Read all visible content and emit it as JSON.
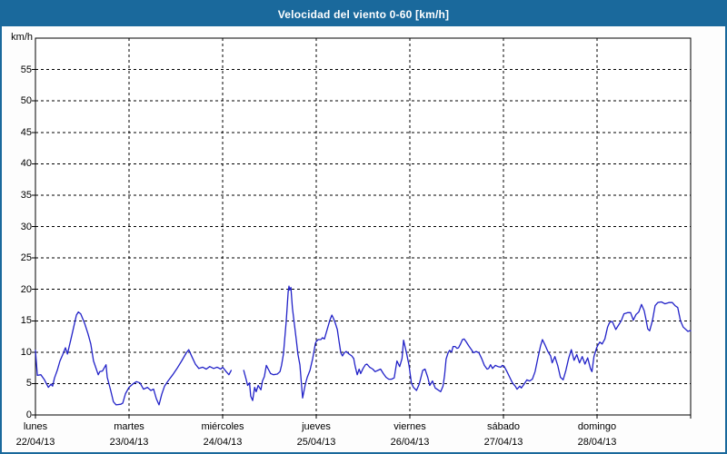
{
  "window": {
    "title": "Velocidad del viento 0-60 [km/h]"
  },
  "colors": {
    "header_bg": "#1a699c",
    "frame_border": "#1a699c",
    "page_bg": "#fdfdfd",
    "plot_bg": "#ffffff",
    "title_text": "#ffffff",
    "axis_text": "#000000",
    "grid": "#000000",
    "line": "#2222c8"
  },
  "chart_data": {
    "type": "line",
    "title": "Velocidad del viento 0-60 [km/h]",
    "ylabel": "km/h",
    "xlabel": "",
    "ylim": [
      0,
      60
    ],
    "y_ticks": [
      0,
      5,
      10,
      15,
      20,
      25,
      30,
      35,
      40,
      45,
      50,
      55
    ],
    "grid": "dashed",
    "legend": "none",
    "x_axis": {
      "range_hours": [
        0,
        168
      ],
      "hours_per_day": 24,
      "days": [
        {
          "name": "lunes",
          "date": "22/04/13"
        },
        {
          "name": "martes",
          "date": "23/04/13"
        },
        {
          "name": "miércoles",
          "date": "24/04/13"
        },
        {
          "name": "jueves",
          "date": "25/04/13"
        },
        {
          "name": "viernes",
          "date": "26/04/13"
        },
        {
          "name": "sábado",
          "date": "27/04/13"
        },
        {
          "name": "domingo",
          "date": "28/04/13"
        }
      ]
    },
    "series": [
      {
        "name": "Velocidad del viento",
        "units": "km/h",
        "color": "#2222c8",
        "segments": [
          [
            [
              0,
              10.3
            ],
            [
              0.5,
              6.3
            ],
            [
              1.4,
              6.4
            ],
            [
              2.3,
              5.6
            ],
            [
              3.3,
              4.4
            ],
            [
              4,
              4.9
            ],
            [
              4.4,
              4.6
            ],
            [
              4.9,
              5.9
            ],
            [
              5.6,
              7.1
            ],
            [
              6.3,
              8.6
            ],
            [
              7,
              9.6
            ],
            [
              7.7,
              10.7
            ],
            [
              8.2,
              9.7
            ],
            [
              9.1,
              12.1
            ],
            [
              9.8,
              14
            ],
            [
              10.5,
              15.9
            ],
            [
              11,
              16.4
            ],
            [
              11.6,
              16.1
            ],
            [
              12.6,
              14.6
            ],
            [
              13.5,
              12.9
            ],
            [
              14.2,
              11.3
            ],
            [
              14.9,
              8.6
            ],
            [
              16.1,
              6.4
            ],
            [
              16.5,
              6.9
            ],
            [
              17.2,
              7
            ],
            [
              18.1,
              8
            ],
            [
              18.4,
              6
            ],
            [
              19.3,
              3.9
            ],
            [
              20,
              2.1
            ],
            [
              20.7,
              1.6
            ],
            [
              21.9,
              1.7
            ],
            [
              22.4,
              1.9
            ],
            [
              23.1,
              3.4
            ],
            [
              24,
              4.4
            ],
            [
              24.9,
              4.9
            ],
            [
              25.9,
              5.3
            ],
            [
              26.8,
              5.1
            ],
            [
              27.7,
              4.1
            ],
            [
              28.7,
              4.4
            ],
            [
              29.6,
              3.9
            ],
            [
              30.3,
              4.1
            ],
            [
              31,
              2.6
            ],
            [
              31.7,
              1.6
            ],
            [
              32.4,
              3.3
            ],
            [
              33.1,
              4.6
            ],
            [
              34,
              5.4
            ],
            [
              35.2,
              6.4
            ],
            [
              36.3,
              7.4
            ],
            [
              37.5,
              8.6
            ],
            [
              38.7,
              9.9
            ],
            [
              39.3,
              10.4
            ],
            [
              40.1,
              9.3
            ],
            [
              41,
              8.1
            ],
            [
              41.9,
              7.4
            ],
            [
              42.9,
              7.6
            ],
            [
              43.8,
              7.3
            ],
            [
              44.7,
              7.7
            ],
            [
              45.7,
              7.4
            ],
            [
              46.6,
              7.6
            ],
            [
              47.5,
              7.3
            ],
            [
              48,
              7.6
            ],
            [
              48.9,
              6.9
            ],
            [
              49.6,
              6.4
            ],
            [
              50.2,
              7.1
            ]
          ],
          [
            [
              53.4,
              7.1
            ],
            [
              54,
              5.7
            ],
            [
              54.4,
              4.7
            ],
            [
              54.9,
              5.1
            ],
            [
              55.2,
              3
            ],
            [
              55.7,
              2.3
            ],
            [
              56.2,
              4.4
            ],
            [
              56.6,
              3.7
            ],
            [
              57.1,
              4.7
            ],
            [
              57.8,
              4
            ],
            [
              58.2,
              5.4
            ],
            [
              58.7,
              6.1
            ],
            [
              59.2,
              7.9
            ],
            [
              59.7,
              7.3
            ],
            [
              60.3,
              6.6
            ],
            [
              61,
              6.4
            ],
            [
              62,
              6.5
            ],
            [
              62.7,
              6.9
            ],
            [
              63.1,
              7.9
            ],
            [
              63.6,
              9.7
            ],
            [
              64.3,
              15
            ],
            [
              64.8,
              19.6
            ],
            [
              65,
              20.5
            ],
            [
              65.2,
              19.9
            ],
            [
              65.5,
              20.3
            ],
            [
              65.9,
              17
            ],
            [
              66.4,
              14.4
            ],
            [
              66.9,
              11.9
            ],
            [
              67.3,
              9.7
            ],
            [
              67.8,
              8
            ],
            [
              68.3,
              4.3
            ],
            [
              68.5,
              2.7
            ],
            [
              69.2,
              4.9
            ],
            [
              69.7,
              6
            ],
            [
              70.4,
              7.1
            ],
            [
              71.1,
              9
            ],
            [
              71.8,
              11.4
            ],
            [
              72,
              11.7
            ],
            [
              72.5,
              12
            ],
            [
              73.2,
              12
            ],
            [
              73.6,
              12.3
            ],
            [
              74.1,
              12.1
            ],
            [
              74.8,
              13.6
            ],
            [
              75.5,
              15.1
            ],
            [
              76,
              15.9
            ],
            [
              76.4,
              15.4
            ],
            [
              76.9,
              14.6
            ],
            [
              77.4,
              13.6
            ],
            [
              77.8,
              11.9
            ],
            [
              78.3,
              9.9
            ],
            [
              78.7,
              9.4
            ],
            [
              79.2,
              9.9
            ],
            [
              79.7,
              10.1
            ],
            [
              80.4,
              9.7
            ],
            [
              81.1,
              9.4
            ],
            [
              81.6,
              9
            ],
            [
              82,
              7.7
            ],
            [
              82.5,
              6.4
            ],
            [
              83,
              7.3
            ],
            [
              83.4,
              6.6
            ],
            [
              84,
              7.4
            ],
            [
              84.6,
              8
            ],
            [
              85,
              8.1
            ],
            [
              85.7,
              7.6
            ],
            [
              86.5,
              7.3
            ],
            [
              87.1,
              6.9
            ],
            [
              87.8,
              7.1
            ],
            [
              88.5,
              7.3
            ],
            [
              89.2,
              6.6
            ],
            [
              89.9,
              6
            ],
            [
              90.6,
              5.7
            ],
            [
              91.3,
              5.7
            ],
            [
              92,
              5.9
            ],
            [
              92.7,
              8.6
            ],
            [
              93.4,
              7.7
            ],
            [
              94,
              9
            ],
            [
              94.4,
              11.9
            ],
            [
              95.1,
              10
            ],
            [
              95.8,
              7.9
            ],
            [
              96.4,
              5.1
            ],
            [
              96.9,
              4.4
            ],
            [
              97.7,
              3.9
            ],
            [
              98.4,
              4.9
            ],
            [
              99.3,
              7.1
            ],
            [
              99.9,
              7.3
            ],
            [
              100.6,
              6
            ],
            [
              101.1,
              4.7
            ],
            [
              101.8,
              5.4
            ],
            [
              102.5,
              4.3
            ],
            [
              103.2,
              4
            ],
            [
              103.9,
              3.7
            ],
            [
              104.5,
              4.6
            ],
            [
              104.9,
              6.3
            ],
            [
              105.3,
              8.9
            ],
            [
              105.8,
              9.9
            ],
            [
              106.2,
              10.3
            ],
            [
              106.7,
              10
            ],
            [
              107.1,
              10.9
            ],
            [
              107.6,
              10.9
            ],
            [
              108.1,
              10.6
            ],
            [
              108.5,
              10.7
            ],
            [
              109,
              11.3
            ],
            [
              109.5,
              12
            ],
            [
              109.9,
              12.1
            ],
            [
              110.4,
              11.7
            ],
            [
              111.1,
              11
            ],
            [
              111.8,
              10.4
            ],
            [
              112.3,
              9.9
            ],
            [
              113,
              10.1
            ],
            [
              113.7,
              9.9
            ],
            [
              114.4,
              9
            ],
            [
              115.1,
              7.9
            ],
            [
              115.8,
              7.3
            ],
            [
              116.2,
              7.4
            ],
            [
              116.7,
              8
            ],
            [
              117.2,
              7.4
            ],
            [
              117.9,
              7.9
            ],
            [
              118.6,
              7.7
            ],
            [
              119.3,
              7.6
            ],
            [
              119.7,
              7.9
            ],
            [
              120.2,
              7.7
            ],
            [
              120.9,
              6.9
            ],
            [
              121.6,
              6
            ],
            [
              122.3,
              5.1
            ],
            [
              123,
              4.6
            ],
            [
              123.5,
              4.1
            ],
            [
              124.2,
              4.6
            ],
            [
              124.6,
              4.3
            ],
            [
              125.3,
              4.9
            ],
            [
              126,
              5.6
            ],
            [
              126.7,
              5.4
            ],
            [
              127.4,
              5.7
            ],
            [
              128.1,
              6.9
            ],
            [
              128.8,
              9
            ],
            [
              129.5,
              11
            ],
            [
              130,
              12
            ],
            [
              130.7,
              11.1
            ],
            [
              131.4,
              10.1
            ],
            [
              132.1,
              9.4
            ],
            [
              132.5,
              8.3
            ],
            [
              133.2,
              9.3
            ],
            [
              133.9,
              7.9
            ],
            [
              134.6,
              6
            ],
            [
              135.3,
              5.6
            ],
            [
              136,
              7.1
            ],
            [
              136.7,
              9
            ],
            [
              137.4,
              10.4
            ],
            [
              138.1,
              8.7
            ],
            [
              138.8,
              9.6
            ],
            [
              139.5,
              8.3
            ],
            [
              140.2,
              9.3
            ],
            [
              140.9,
              8.1
            ],
            [
              141.6,
              9.1
            ],
            [
              142.3,
              7.4
            ],
            [
              142.7,
              6.9
            ],
            [
              143.2,
              9.3
            ],
            [
              143.9,
              10.7
            ],
            [
              144.2,
              11.1
            ],
            [
              144.7,
              11.6
            ],
            [
              145.3,
              11.3
            ],
            [
              146,
              12.1
            ],
            [
              146.7,
              14
            ],
            [
              147.2,
              14.7
            ],
            [
              147.9,
              14.9
            ],
            [
              148.8,
              13.6
            ],
            [
              149.5,
              14.3
            ],
            [
              150.2,
              15
            ],
            [
              150.9,
              16.1
            ],
            [
              151.9,
              16.3
            ],
            [
              152.6,
              16.3
            ],
            [
              153.3,
              15.1
            ],
            [
              154,
              16
            ],
            [
              154.7,
              16.4
            ],
            [
              155.4,
              17.6
            ],
            [
              156.1,
              16.6
            ],
            [
              156.5,
              15.4
            ],
            [
              157,
              13.7
            ],
            [
              157.5,
              13.4
            ],
            [
              158.2,
              15
            ],
            [
              158.9,
              17.4
            ],
            [
              159.6,
              17.9
            ],
            [
              160.5,
              18
            ],
            [
              161.4,
              17.7
            ],
            [
              162.4,
              17.9
            ],
            [
              163.3,
              17.9
            ],
            [
              164,
              17.4
            ],
            [
              164.7,
              17.1
            ],
            [
              165.4,
              15
            ],
            [
              166.1,
              14
            ],
            [
              166.6,
              13.7
            ],
            [
              167.3,
              13.3
            ],
            [
              167.7,
              13.4
            ],
            [
              168,
              13.4
            ]
          ]
        ]
      }
    ]
  }
}
